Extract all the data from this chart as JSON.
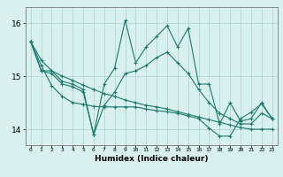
{
  "xlabel": "Humidex (Indice chaleur)",
  "bg_color": "#d8f0ee",
  "grid_color": "#aed4cf",
  "line_color": "#1a7a6e",
  "xlim": [
    -0.5,
    23.5
  ],
  "ylim": [
    13.7,
    16.3
  ],
  "yticks": [
    14,
    15,
    16
  ],
  "xticks": [
    0,
    1,
    2,
    3,
    4,
    5,
    6,
    7,
    8,
    9,
    10,
    11,
    12,
    13,
    14,
    15,
    16,
    17,
    18,
    19,
    20,
    21,
    22,
    23
  ],
  "series": [
    [
      15.65,
      15.1,
      15.1,
      14.9,
      14.85,
      14.75,
      13.9,
      14.85,
      15.15,
      16.05,
      15.25,
      15.55,
      15.75,
      15.95,
      15.55,
      15.9,
      14.85,
      14.85,
      14.1,
      14.5,
      14.15,
      14.2,
      14.5,
      14.2
    ],
    [
      15.65,
      15.1,
      15.05,
      14.85,
      14.8,
      14.7,
      13.9,
      14.45,
      14.7,
      15.05,
      15.1,
      15.2,
      15.35,
      15.45,
      15.25,
      15.05,
      14.75,
      14.5,
      14.3,
      14.2,
      14.1,
      14.1,
      14.3,
      14.2
    ],
    [
      15.65,
      15.3,
      15.1,
      15.0,
      14.92,
      14.83,
      14.75,
      14.67,
      14.62,
      14.55,
      14.5,
      14.45,
      14.42,
      14.38,
      14.33,
      14.28,
      14.23,
      14.18,
      14.13,
      14.08,
      14.03,
      14.0,
      14.0,
      14.0
    ],
    [
      15.65,
      15.2,
      14.82,
      14.62,
      14.5,
      14.47,
      14.43,
      14.42,
      14.42,
      14.42,
      14.42,
      14.38,
      14.35,
      14.33,
      14.3,
      14.25,
      14.2,
      14.02,
      13.87,
      13.87,
      14.2,
      14.32,
      14.48,
      14.2
    ]
  ]
}
